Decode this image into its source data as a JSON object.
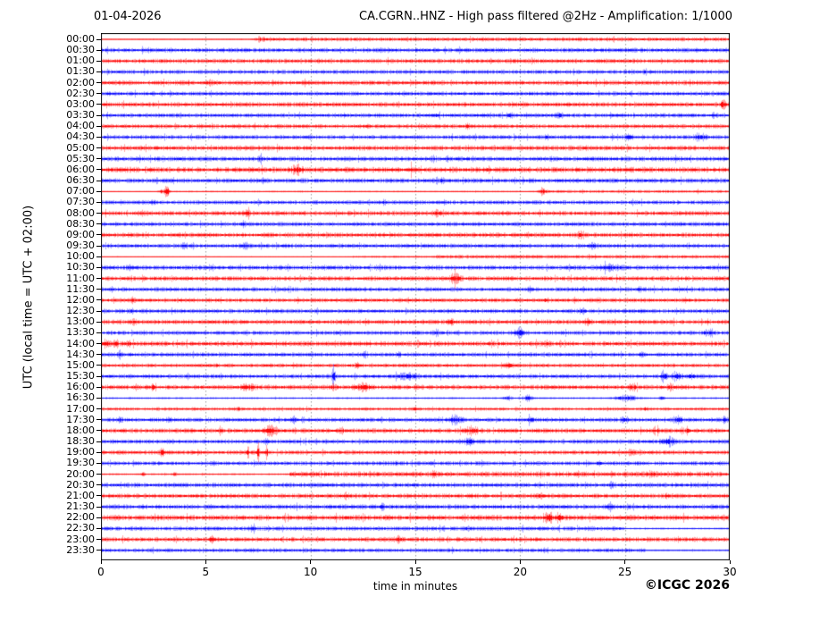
{
  "header": {
    "date_title": "01-04-2026",
    "main_title": "CA.CGRN..HNZ - High pass filtered @2Hz - Amplification: 1/1000"
  },
  "footer": {
    "copyright": "©ICGC 2026"
  },
  "chart_data": {
    "type": "line",
    "subtype": "helicorder-daily-seismogram",
    "title": "CA.CGRN..HNZ - High pass filtered @2Hz - Amplification: 1/1000",
    "date": "01-04-2026",
    "xlabel": "time in minutes",
    "ylabel": "UTC (local time = UTC + 02:00)",
    "xlim": [
      0,
      30
    ],
    "x_ticks": [
      0,
      5,
      10,
      15,
      20,
      25,
      30
    ],
    "grid_minutes": [
      5,
      10,
      15,
      20,
      25
    ],
    "minutes_per_row": 30,
    "grid_on": true,
    "colors": {
      "red": "#ff0000",
      "blue": "#0000ff",
      "grid": "#999999",
      "frame": "#000000"
    },
    "legend": "rows alternate red/blue per 30-minute segment; amp = background noise half-amplitude px; seg = [start_min,end_min,amp]; events = [minute, peak_amp_px, sigma_min]",
    "rows": [
      {
        "t": "00:00",
        "c": "red",
        "amp": 2.0,
        "seg": [
          [
            0,
            7.5,
            0.5
          ],
          [
            7.5,
            30,
            2.0
          ]
        ],
        "ev": [
          [
            7.6,
            1.5,
            0.3
          ]
        ]
      },
      {
        "t": "00:30",
        "c": "blue",
        "amp": 2.3,
        "ev": []
      },
      {
        "t": "01:00",
        "c": "red",
        "amp": 2.3,
        "ev": []
      },
      {
        "t": "01:30",
        "c": "blue",
        "amp": 2.2,
        "ev": [
          [
            26.0,
            1.5,
            0.08
          ]
        ]
      },
      {
        "t": "02:00",
        "c": "red",
        "amp": 2.4,
        "ev": [
          [
            5.3,
            2.0,
            0.2
          ]
        ]
      },
      {
        "t": "02:30",
        "c": "blue",
        "amp": 2.2,
        "ev": []
      },
      {
        "t": "03:00",
        "c": "red",
        "amp": 2.4,
        "ev": [
          [
            29.7,
            4.5,
            0.1
          ]
        ]
      },
      {
        "t": "03:30",
        "c": "blue",
        "amp": 2.2,
        "ev": [
          [
            16.0,
            1.5,
            0.12
          ],
          [
            19.5,
            2.0,
            0.12
          ],
          [
            21.9,
            2.2,
            0.15
          ],
          [
            29.3,
            1.8,
            0.12
          ]
        ]
      },
      {
        "t": "04:00",
        "c": "red",
        "amp": 2.2,
        "ev": [
          [
            12.8,
            1.5,
            0.1
          ],
          [
            17.5,
            1.5,
            0.1
          ]
        ]
      },
      {
        "t": "04:30",
        "c": "blue",
        "amp": 2.2,
        "ev": [
          [
            21.3,
            1.5,
            0.1
          ],
          [
            25.2,
            2.2,
            0.15
          ],
          [
            28.6,
            3.0,
            0.25
          ]
        ]
      },
      {
        "t": "05:00",
        "c": "red",
        "amp": 2.5,
        "ev": []
      },
      {
        "t": "05:30",
        "c": "blue",
        "amp": 2.4,
        "ev": [
          [
            7.6,
            2.0,
            0.12
          ],
          [
            16.5,
            1.5,
            0.1
          ]
        ]
      },
      {
        "t": "06:00",
        "c": "red",
        "amp": 2.8,
        "ev": [
          [
            9.35,
            3.5,
            0.25
          ],
          [
            14.8,
            2.0,
            0.12
          ],
          [
            18.5,
            1.5,
            0.1
          ]
        ]
      },
      {
        "t": "06:30",
        "c": "blue",
        "amp": 2.4,
        "ev": [
          [
            7.7,
            2.2,
            0.12
          ],
          [
            16.3,
            1.8,
            0.1
          ]
        ]
      },
      {
        "t": "07:00",
        "c": "red",
        "amp": 1.0,
        "seg": [
          [
            0,
            3,
            0.5
          ],
          [
            3,
            21,
            0.8
          ],
          [
            21,
            30,
            1.5
          ]
        ],
        "ev": [
          [
            2.9,
            3.0,
            0.15
          ],
          [
            3.15,
            8.0,
            0.09
          ],
          [
            21.1,
            3.0,
            0.25
          ]
        ]
      },
      {
        "t": "07:30",
        "c": "blue",
        "amp": 2.2,
        "ev": [
          [
            2.5,
            1.5,
            0.1
          ],
          [
            13.5,
            1.5,
            0.1
          ]
        ]
      },
      {
        "t": "08:00",
        "c": "red",
        "amp": 2.4,
        "ev": [
          [
            7.0,
            2.0,
            0.15
          ],
          [
            16.1,
            2.2,
            0.2
          ]
        ]
      },
      {
        "t": "08:30",
        "c": "blue",
        "amp": 2.2,
        "ev": [
          [
            6.8,
            1.8,
            0.12
          ]
        ]
      },
      {
        "t": "09:00",
        "c": "red",
        "amp": 2.4,
        "ev": [
          [
            22.9,
            3.0,
            0.12
          ]
        ]
      },
      {
        "t": "09:30",
        "c": "blue",
        "amp": 2.2,
        "ev": [
          [
            4.0,
            2.0,
            0.15
          ],
          [
            6.9,
            2.0,
            0.15
          ],
          [
            23.5,
            2.0,
            0.2
          ]
        ]
      },
      {
        "t": "10:00",
        "c": "red",
        "amp": 1.9,
        "seg": [
          [
            0,
            12,
            0.4
          ],
          [
            12,
            16,
            1.1
          ],
          [
            16,
            30,
            1.9
          ]
        ],
        "ev": []
      },
      {
        "t": "10:30",
        "c": "blue",
        "amp": 2.4,
        "ev": [
          [
            1.4,
            1.8,
            0.12
          ],
          [
            24.3,
            2.0,
            0.5
          ]
        ]
      },
      {
        "t": "11:00",
        "c": "red",
        "amp": 2.4,
        "ev": [
          [
            16.9,
            4.0,
            0.22
          ]
        ]
      },
      {
        "t": "11:30",
        "c": "blue",
        "amp": 2.2,
        "ev": [
          [
            20.5,
            1.5,
            0.1
          ],
          [
            23.0,
            1.5,
            0.1
          ],
          [
            25.7,
            1.8,
            0.1
          ]
        ]
      },
      {
        "t": "12:00",
        "c": "red",
        "amp": 2.2,
        "ev": [
          [
            1.5,
            1.5,
            0.1
          ],
          [
            21.2,
            1.8,
            0.12
          ]
        ]
      },
      {
        "t": "12:30",
        "c": "blue",
        "amp": 2.2,
        "ev": [
          [
            1.4,
            1.8,
            0.12
          ],
          [
            23.0,
            1.8,
            0.15
          ],
          [
            25.7,
            1.5,
            0.1
          ]
        ]
      },
      {
        "t": "13:00",
        "c": "red",
        "amp": 2.4,
        "ev": [
          [
            1.6,
            2.0,
            0.12
          ],
          [
            16.7,
            2.2,
            0.15
          ],
          [
            23.2,
            2.2,
            0.15
          ]
        ]
      },
      {
        "t": "13:30",
        "c": "blue",
        "amp": 2.2,
        "ev": [
          [
            16.0,
            2.5,
            0.12
          ],
          [
            20.0,
            4.5,
            0.18
          ],
          [
            29.0,
            2.5,
            0.2
          ]
        ]
      },
      {
        "t": "14:00",
        "c": "red",
        "amp": 2.6,
        "ev": [
          [
            0.25,
            4.5,
            0.12
          ],
          [
            0.7,
            3.0,
            0.1
          ],
          [
            1.3,
            2.5,
            0.1
          ],
          [
            21.3,
            1.8,
            0.1
          ]
        ]
      },
      {
        "t": "14:30",
        "c": "blue",
        "amp": 2.2,
        "ev": [
          [
            0.9,
            3.0,
            0.08
          ],
          [
            12.6,
            1.8,
            0.12
          ],
          [
            14.2,
            1.8,
            0.1
          ],
          [
            25.8,
            1.8,
            0.1
          ]
        ]
      },
      {
        "t": "15:00",
        "c": "red",
        "amp": 2.0,
        "ev": [
          [
            5.5,
            1.8,
            0.12
          ],
          [
            12.2,
            2.2,
            0.12
          ],
          [
            19.5,
            2.0,
            0.15
          ]
        ]
      },
      {
        "t": "15:30",
        "c": "blue",
        "amp": 2.2,
        "ev": [
          [
            11.1,
            11.0,
            0.07
          ],
          [
            14.6,
            2.5,
            0.45
          ],
          [
            26.9,
            5.5,
            0.12
          ],
          [
            27.5,
            4.5,
            0.18
          ],
          [
            28.2,
            2.5,
            0.15
          ]
        ]
      },
      {
        "t": "16:00",
        "c": "red",
        "amp": 2.4,
        "ev": [
          [
            2.5,
            3.5,
            0.08
          ],
          [
            7.0,
            2.5,
            0.35
          ],
          [
            11.1,
            2.2,
            0.15
          ],
          [
            12.5,
            2.5,
            0.4
          ],
          [
            25.4,
            2.8,
            0.18
          ],
          [
            27.2,
            2.5,
            0.15
          ]
        ]
      },
      {
        "t": "16:30",
        "c": "blue",
        "amp": 1.0,
        "seg": [
          [
            0,
            30,
            1.0
          ]
        ],
        "ev": [
          [
            19.4,
            2.5,
            0.18
          ],
          [
            20.4,
            2.8,
            0.18
          ],
          [
            25.1,
            3.0,
            0.45
          ],
          [
            26.8,
            2.0,
            0.12
          ]
        ]
      },
      {
        "t": "17:00",
        "c": "red",
        "amp": 1.7,
        "ev": [
          [
            6.5,
            1.8,
            0.1
          ],
          [
            15.0,
            1.5,
            0.1
          ],
          [
            26.0,
            1.5,
            0.1
          ]
        ]
      },
      {
        "t": "17:30",
        "c": "blue",
        "amp": 2.2,
        "ev": [
          [
            0.9,
            1.8,
            0.1
          ],
          [
            3.2,
            2.0,
            0.12
          ],
          [
            9.2,
            2.2,
            0.15
          ],
          [
            16.9,
            3.5,
            0.3
          ],
          [
            20.5,
            2.5,
            0.15
          ],
          [
            25.0,
            2.5,
            0.18
          ],
          [
            27.6,
            2.5,
            0.2
          ],
          [
            29.8,
            2.2,
            0.12
          ]
        ]
      },
      {
        "t": "18:00",
        "c": "red",
        "amp": 2.4,
        "ev": [
          [
            5.7,
            1.8,
            0.1
          ],
          [
            8.1,
            3.5,
            0.35
          ],
          [
            11.5,
            2.0,
            0.12
          ],
          [
            17.7,
            3.2,
            0.3
          ],
          [
            26.5,
            2.5,
            0.15
          ],
          [
            28.0,
            2.2,
            0.12
          ]
        ]
      },
      {
        "t": "18:30",
        "c": "blue",
        "amp": 2.2,
        "ev": [
          [
            7.9,
            1.8,
            0.1
          ],
          [
            17.6,
            2.8,
            0.2
          ],
          [
            27.1,
            3.5,
            0.3
          ]
        ]
      },
      {
        "t": "19:00",
        "c": "red",
        "amp": 2.2,
        "ev": [
          [
            2.9,
            4.0,
            0.08
          ],
          [
            7.0,
            6.5,
            0.06
          ],
          [
            7.5,
            7.5,
            0.06
          ],
          [
            7.9,
            6.5,
            0.06
          ],
          [
            25.3,
            2.2,
            0.15
          ]
        ]
      },
      {
        "t": "19:30",
        "c": "blue",
        "amp": 2.2,
        "ev": [
          [
            14.1,
            1.5,
            0.1
          ],
          [
            23.8,
            1.5,
            0.1
          ]
        ]
      },
      {
        "t": "20:00",
        "c": "red",
        "amp": 2.7,
        "seg": [
          [
            0,
            9,
            1.0
          ],
          [
            9,
            30,
            2.7
          ]
        ],
        "ev": [
          [
            2.0,
            1.8,
            0.1
          ],
          [
            3.5,
            1.8,
            0.1
          ],
          [
            15.9,
            2.0,
            0.12
          ],
          [
            26.3,
            2.2,
            0.15
          ]
        ]
      },
      {
        "t": "20:30",
        "c": "blue",
        "amp": 2.4,
        "ev": [
          [
            24.4,
            2.0,
            0.12
          ]
        ]
      },
      {
        "t": "21:00",
        "c": "red",
        "amp": 2.4,
        "ev": [
          [
            11.7,
            2.0,
            0.12
          ],
          [
            21.0,
            2.0,
            0.12
          ],
          [
            27.0,
            1.8,
            0.1
          ]
        ]
      },
      {
        "t": "21:30",
        "c": "blue",
        "amp": 2.4,
        "ev": [
          [
            13.4,
            2.0,
            0.12
          ],
          [
            24.3,
            1.8,
            0.1
          ]
        ]
      },
      {
        "t": "22:00",
        "c": "red",
        "amp": 2.8,
        "ev": [
          [
            21.4,
            5.0,
            0.18
          ],
          [
            21.9,
            4.0,
            0.14
          ]
        ]
      },
      {
        "t": "22:30",
        "c": "blue",
        "amp": 2.2,
        "seg": [
          [
            0,
            25,
            2.2
          ],
          [
            25,
            30,
            1.0
          ]
        ],
        "ev": [
          [
            7.2,
            1.8,
            0.12
          ],
          [
            17.5,
            1.5,
            0.1
          ]
        ]
      },
      {
        "t": "23:00",
        "c": "red",
        "amp": 2.4,
        "ev": [
          [
            5.3,
            2.5,
            0.15
          ],
          [
            14.2,
            2.5,
            0.18
          ]
        ]
      },
      {
        "t": "23:30",
        "c": "blue",
        "amp": 2.0,
        "seg": [
          [
            0,
            26,
            2.0
          ],
          [
            26,
            30,
            0.9
          ]
        ],
        "ev": [
          [
            7.3,
            1.5,
            0.1
          ]
        ]
      }
    ]
  }
}
